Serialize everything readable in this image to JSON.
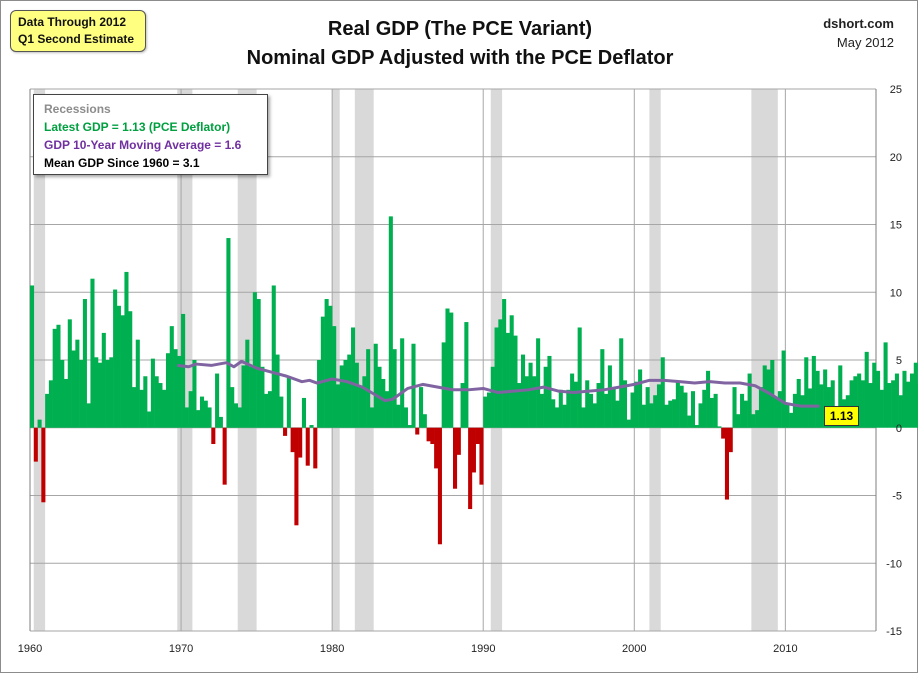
{
  "note": {
    "line1": "Data Through 2012",
    "line2": "Q1 Second Estimate"
  },
  "title": {
    "line1": "Real GDP (The PCE Variant)",
    "line2": "Nominal GDP Adjusted with the PCE Deflator"
  },
  "source": {
    "site": "dshort.com",
    "date": "May 2012"
  },
  "legend": {
    "recessions": "Recessions",
    "latest": "Latest GDP = 1.13  (PCE Deflator)",
    "moving_avg": "GDP 10-Year Moving Average = 1.6",
    "mean": "Mean GDP  Since 1960 = 3.1"
  },
  "latest_label": "1.13",
  "colors": {
    "positive": "#00b050",
    "negative": "#c00000",
    "moving_avg": "#8064a2",
    "recession": "#d9d9d9",
    "grid": "#a6a6a6",
    "legend_recessions": "#8c8c8c",
    "legend_latest": "#00a040",
    "legend_moving_avg": "#7030a0",
    "legend_mean": "#000000"
  },
  "chart_data": {
    "type": "bar",
    "title": "Real GDP (The PCE Variant)",
    "subtitle": "Nominal GDP Adjusted with the PCE Deflator",
    "ylim": [
      -15,
      25
    ],
    "xlim": [
      1960,
      2016
    ],
    "y_ticks": [
      25,
      20,
      15,
      10,
      5,
      0,
      -5,
      -10,
      -15
    ],
    "x_ticks": [
      1960,
      1970,
      1980,
      1990,
      2000,
      2010
    ],
    "grid": true,
    "x_start": 1960.0,
    "x_step": 0.25,
    "values": [
      10.5,
      -2.5,
      0.6,
      -5.5,
      2.5,
      3.5,
      7.3,
      7.6,
      5.0,
      3.6,
      8.0,
      5.7,
      6.5,
      5.0,
      9.5,
      1.8,
      11.0,
      5.2,
      4.8,
      7.0,
      5.0,
      5.2,
      10.2,
      9.0,
      8.3,
      11.5,
      8.6,
      3.0,
      6.5,
      2.8,
      3.8,
      1.2,
      5.1,
      3.8,
      3.3,
      2.8,
      5.5,
      7.5,
      5.8,
      5.3,
      8.4,
      1.5,
      2.7,
      5.0,
      1.3,
      2.3,
      2.0,
      1.5,
      -1.2,
      4.0,
      0.8,
      -4.2,
      14.0,
      3.0,
      1.8,
      1.5,
      4.6,
      6.5,
      4.5,
      10.0,
      9.5,
      4.5,
      2.5,
      2.7,
      10.5,
      5.4,
      2.3,
      -0.6,
      3.8,
      -1.8,
      -7.2,
      -2.2,
      2.2,
      -2.8,
      0.2,
      -3.0,
      5.0,
      8.2,
      9.5,
      9.0,
      7.5,
      3.2,
      4.6,
      5.0,
      5.4,
      7.4,
      4.8,
      3.0,
      3.8,
      5.8,
      1.5,
      6.2,
      4.5,
      3.6,
      2.7,
      15.6,
      5.8,
      1.7,
      6.6,
      1.5,
      0.2,
      6.2,
      -0.5,
      3.0,
      1.0,
      -1.0,
      -1.2,
      -3.0,
      -8.6,
      6.3,
      8.8,
      8.5,
      -4.5,
      -2.0,
      3.3,
      7.8,
      -6.0,
      -3.3,
      -1.2,
      -4.2,
      2.3,
      2.6,
      4.5,
      7.4,
      8.0,
      9.5,
      7.0,
      8.3,
      6.8,
      3.3,
      5.4,
      3.8,
      4.8,
      3.8,
      6.6,
      2.5,
      4.5,
      5.3,
      2.1,
      1.5,
      2.8,
      1.7,
      2.8,
      4.0,
      3.4,
      7.4,
      1.5,
      3.5,
      2.5,
      1.8,
      3.3,
      5.8,
      2.5,
      4.6,
      3.0,
      2.0,
      6.6,
      3.5,
      0.6,
      2.6,
      3.4,
      4.3,
      1.7,
      3.0,
      1.8,
      2.4,
      3.2,
      5.2,
      1.7,
      2.0,
      2.1,
      3.4,
      3.1,
      2.6,
      0.9,
      2.7,
      0.2,
      1.8,
      2.8,
      4.2,
      2.2,
      2.5,
      0.1,
      -0.8,
      -5.3,
      -1.8,
      3.0,
      1.0,
      2.5,
      2.0,
      4.0,
      1.0,
      1.3,
      3.0,
      4.6,
      4.3,
      5.0,
      2.2,
      2.7,
      5.7,
      1.7,
      1.1,
      2.5,
      3.6,
      2.4,
      5.2,
      2.9,
      5.3,
      4.2,
      3.2,
      4.3,
      3.0,
      3.5,
      1.3,
      4.6,
      2.1,
      2.4,
      3.5,
      3.8,
      4.0,
      3.5,
      5.6,
      3.3,
      4.8,
      4.2,
      2.8,
      6.3,
      3.3,
      3.5,
      4.0,
      2.4,
      4.2,
      3.4,
      4.0,
      4.8,
      3.2,
      3.2,
      4.8,
      7.2,
      3.6,
      3.0,
      2.2,
      5.3,
      6.3,
      4.0,
      7.3,
      0.5,
      6.6,
      1.6,
      1.0,
      -1.5,
      1.7,
      3.4,
      0.5,
      2.2,
      2.3,
      4.0,
      4.0,
      7.3,
      5.7,
      3.7,
      5.0,
      2.1,
      3.6,
      2.6,
      5.0,
      3.1,
      2.2,
      4.4,
      3.4,
      5.5,
      2.0,
      0.8,
      3.2,
      2.1,
      3.6,
      4.8,
      3.6,
      0.5,
      1.2,
      3.4,
      3.1,
      2.0,
      0.1,
      -0.8,
      0.2,
      -3.0,
      -1.4,
      2.0,
      0.2,
      -4.8,
      -2.2,
      -3.3,
      -2.3,
      -3.1,
      -2.8,
      0.6,
      0.2,
      2.0,
      2.7,
      2.2,
      2.7,
      3.6,
      5.0,
      2.0,
      3.1,
      1.6,
      1.9,
      -0.8,
      1.0,
      0.6,
      1.6,
      2.6,
      1.13
    ],
    "moving_average": {
      "name": "GDP 10-Year Moving Average",
      "points": [
        [
          1969.75,
          4.6
        ],
        [
          1970.5,
          4.5
        ],
        [
          1971,
          4.7
        ],
        [
          1972,
          4.6
        ],
        [
          1973,
          4.8
        ],
        [
          1973.5,
          4.5
        ],
        [
          1974,
          4.9
        ],
        [
          1975,
          4.4
        ],
        [
          1976,
          4.1
        ],
        [
          1977,
          3.8
        ],
        [
          1978,
          3.4
        ],
        [
          1978.5,
          3.5
        ],
        [
          1979,
          3.3
        ],
        [
          1980,
          3.6
        ],
        [
          1981,
          3.4
        ],
        [
          1982,
          3.0
        ],
        [
          1982.75,
          2.5
        ],
        [
          1983.5,
          2.0
        ],
        [
          1984,
          2.1
        ],
        [
          1984.5,
          2.5
        ],
        [
          1985,
          2.9
        ],
        [
          1986,
          3.2
        ],
        [
          1987,
          3.0
        ],
        [
          1988,
          2.8
        ],
        [
          1989,
          2.8
        ],
        [
          1990,
          2.9
        ],
        [
          1991,
          2.6
        ],
        [
          1992,
          2.7
        ],
        [
          1993,
          2.8
        ],
        [
          1994,
          3.0
        ],
        [
          1995,
          2.7
        ],
        [
          1996,
          2.6
        ],
        [
          1997,
          2.7
        ],
        [
          1998,
          2.8
        ],
        [
          1999,
          3.0
        ],
        [
          2000,
          3.2
        ],
        [
          2001,
          3.5
        ],
        [
          2002,
          3.5
        ],
        [
          2003,
          3.4
        ],
        [
          2004,
          3.3
        ],
        [
          2005,
          3.4
        ],
        [
          2006,
          3.3
        ],
        [
          2007,
          3.3
        ],
        [
          2008,
          3.1
        ],
        [
          2009,
          2.5
        ],
        [
          2010,
          1.8
        ],
        [
          2011,
          1.6
        ],
        [
          2012.25,
          1.6
        ]
      ]
    },
    "recessions": [
      [
        1960.25,
        1961.0
      ],
      [
        1969.75,
        1970.75
      ],
      [
        1973.75,
        1975.0
      ],
      [
        1980.0,
        1980.5
      ],
      [
        1981.5,
        1982.75
      ],
      [
        1990.5,
        1991.25
      ],
      [
        2001.0,
        2001.75
      ],
      [
        2007.75,
        2009.5
      ]
    ],
    "latest": {
      "value": 1.13,
      "label": "1.13"
    }
  }
}
